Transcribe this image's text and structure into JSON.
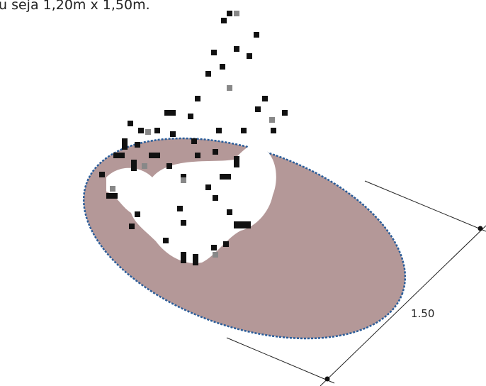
{
  "caption": "u seja 1,20m x 1,50m.",
  "dimension": {
    "label": "1.50"
  }
}
